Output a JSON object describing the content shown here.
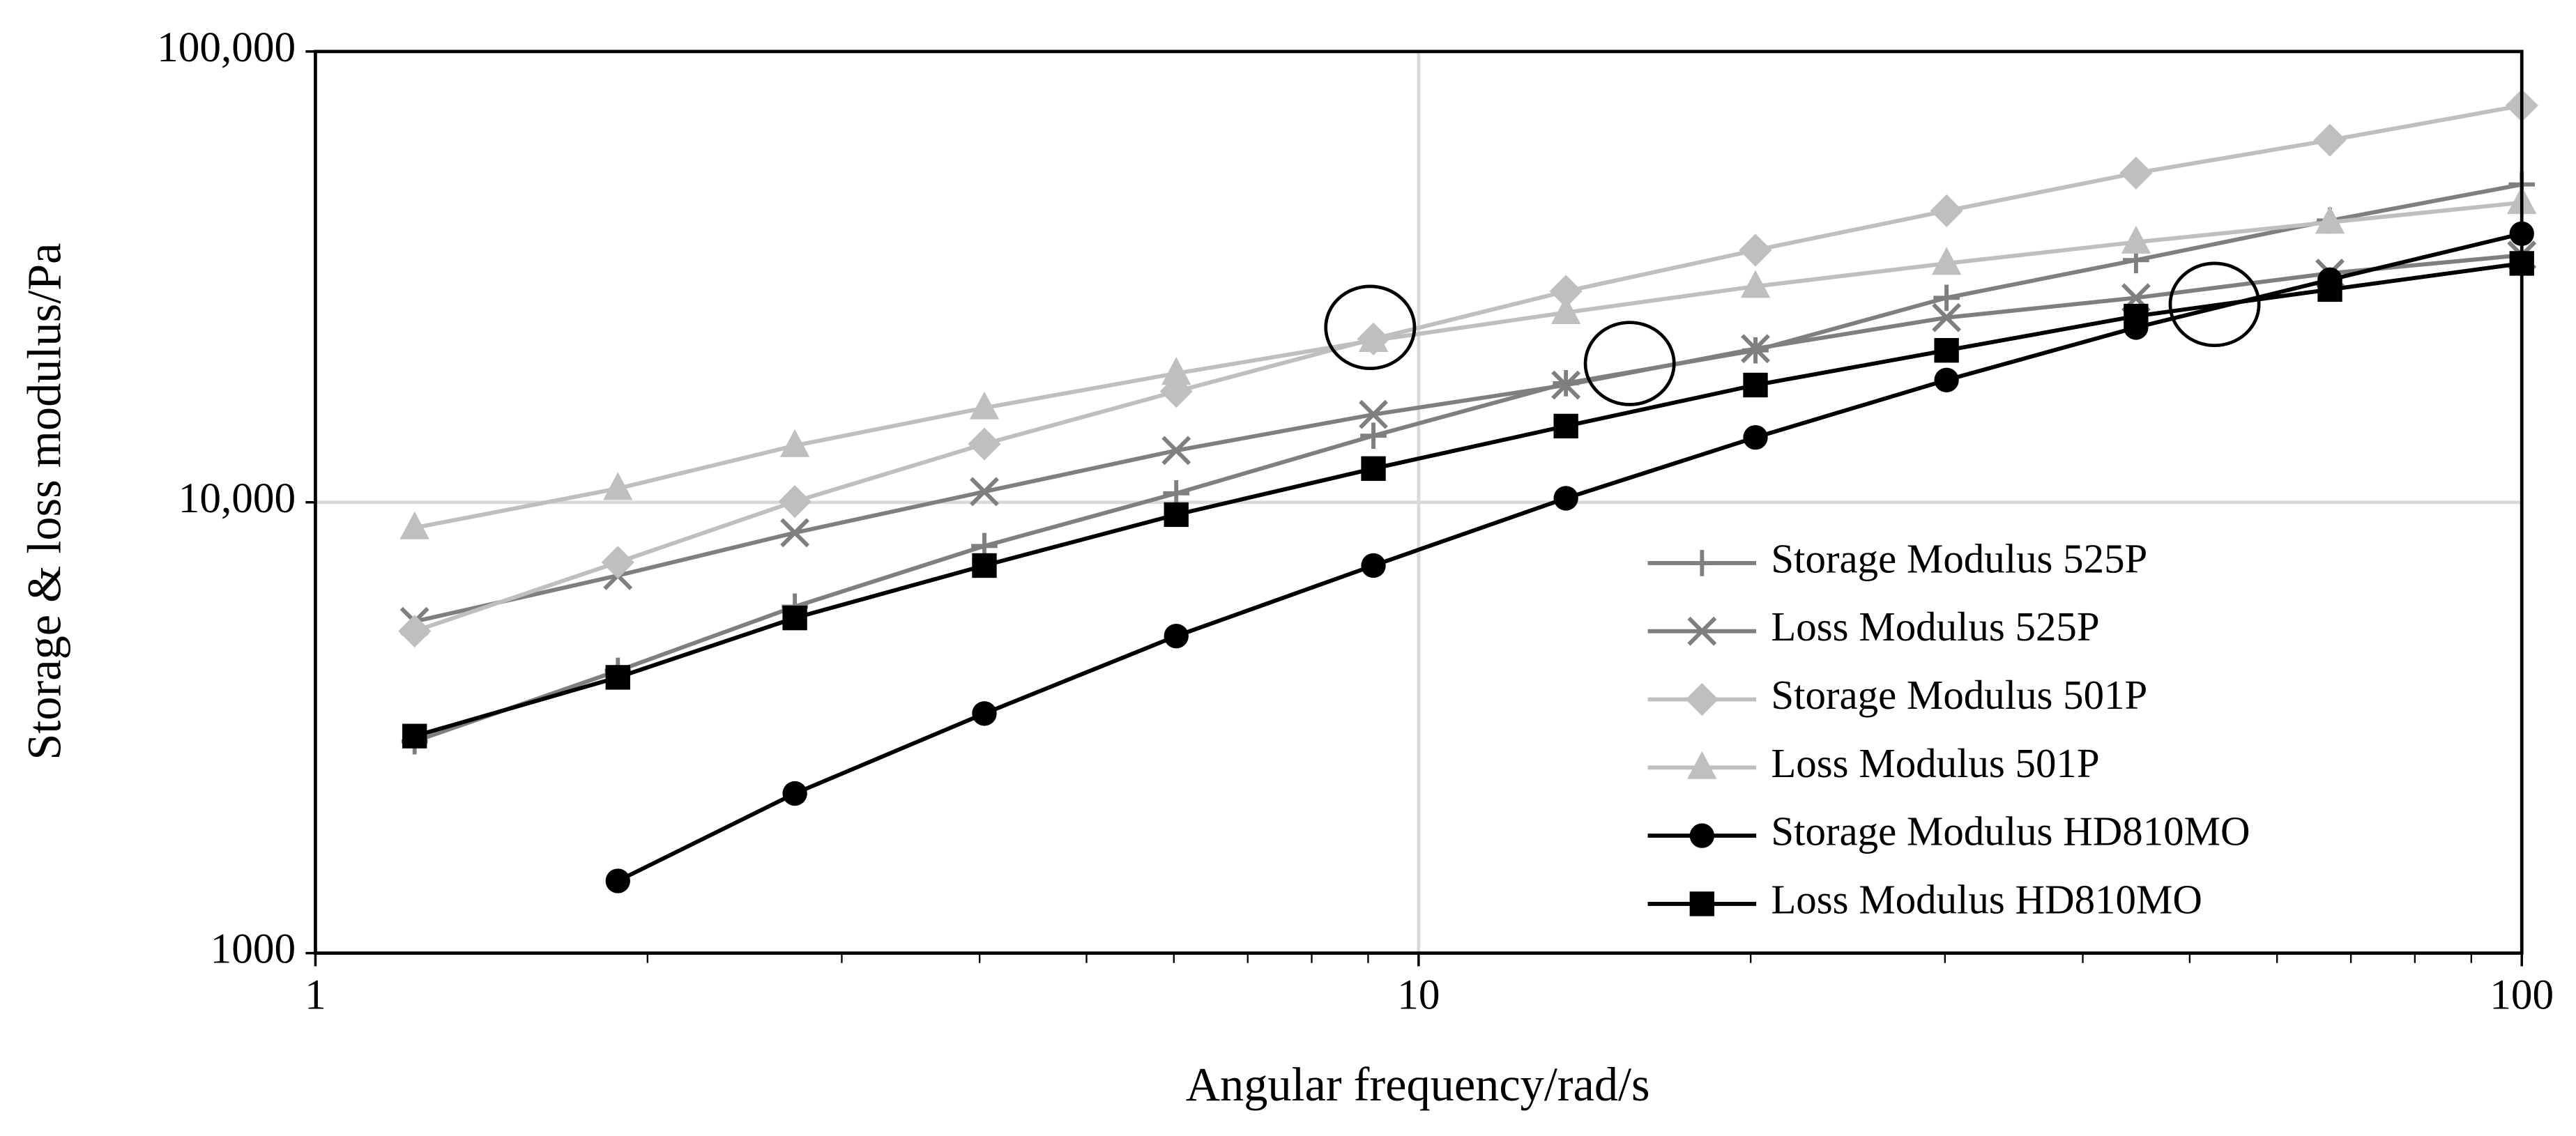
{
  "chart_data": {
    "type": "line",
    "x_label": "Angular frequency/rad/s",
    "y_label": "Storage  &  loss modulus/Pa",
    "x": [
      1.23,
      1.88,
      2.72,
      4.04,
      6.03,
      9.1,
      13.6,
      20.2,
      30.1,
      44.7,
      67,
      100
    ],
    "xlim": [
      1,
      100
    ],
    "ylim": [
      1000,
      100000
    ],
    "xticks": [
      1,
      10,
      100
    ],
    "yticks": [
      1000,
      {
        "value": 10000,
        "label": "10,000"
      },
      {
        "value": 100000,
        "label": "100,000"
      }
    ],
    "x_log": true,
    "y_log": true,
    "grid": true,
    "legend": "lower right",
    "series": [
      {
        "name": "Storage Modulus 525P",
        "color": "#7f7f7f",
        "marker": "plus",
        "values": [
          2950,
          4230,
          5870,
          8000,
          10470,
          14050,
          18370,
          21730,
          28420,
          34450,
          42170,
          50700
        ]
      },
      {
        "name": "Loss Modulus 525P",
        "color": "#7f7f7f",
        "marker": "cross",
        "values": [
          5440,
          6880,
          8560,
          10560,
          13030,
          15660,
          18200,
          21920,
          25690,
          28420,
          32220,
          35340
        ]
      },
      {
        "name": "Storage Modulus 501P",
        "color": "#bfbfbf",
        "marker": "diamond",
        "values": [
          5180,
          7360,
          10040,
          13470,
          17620,
          23030,
          29380,
          36250,
          44320,
          53750,
          63570,
          75860
        ]
      },
      {
        "name": "Loss Modulus 501P",
        "color": "#bfbfbf",
        "marker": "triangle",
        "values": [
          8780,
          10730,
          13360,
          16200,
          19320,
          22860,
          26360,
          30130,
          33880,
          37770,
          41800,
          46220
        ]
      },
      {
        "name": "Storage Modulus HD810MO",
        "color": "#000000",
        "marker": "circle",
        "values": [
          null,
          1446,
          2260,
          3400,
          5050,
          7240,
          10210,
          13930,
          18670,
          24420,
          31170,
          39430
        ]
      },
      {
        "name": "Loss Modulus HD810MO",
        "color": "#000000",
        "marker": "square",
        "values": [
          3030,
          4090,
          5540,
          7240,
          9390,
          11880,
          14760,
          18200,
          21730,
          25880,
          29650,
          33880
        ]
      }
    ]
  }
}
